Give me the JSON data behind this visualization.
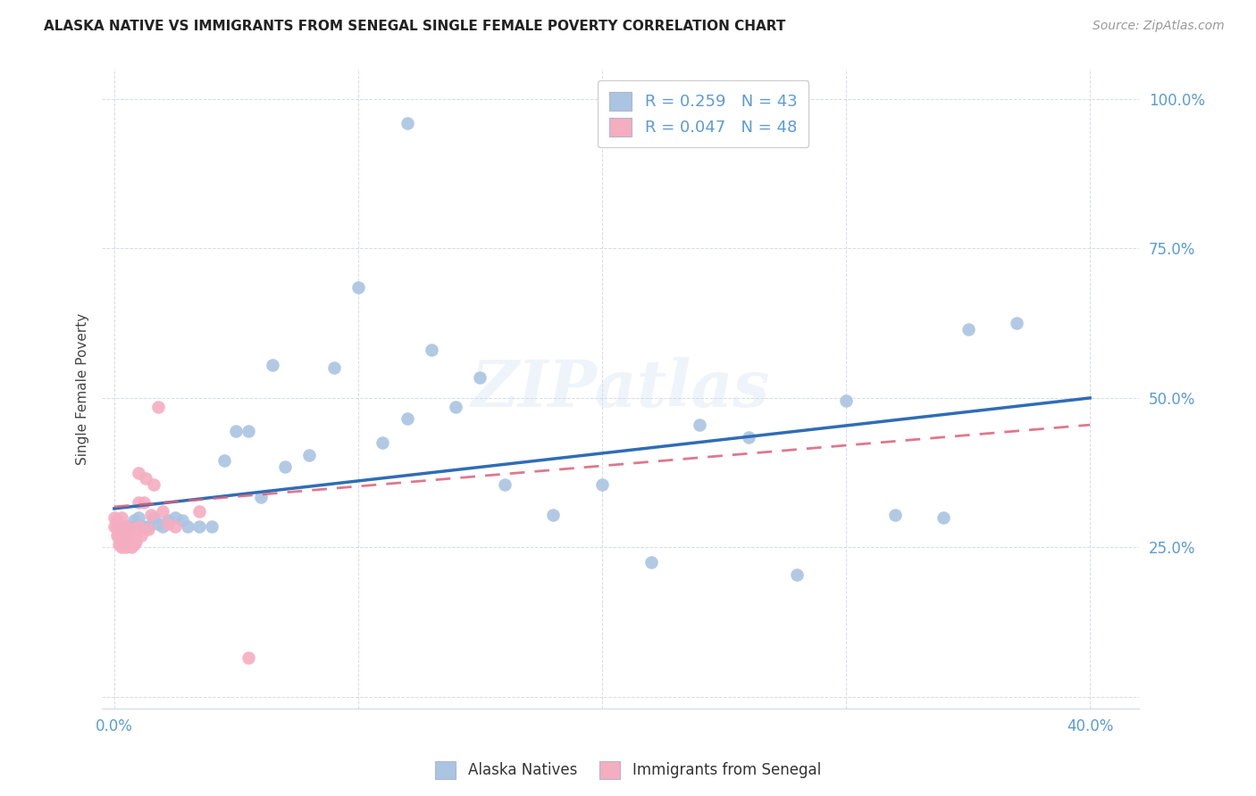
{
  "title": "ALASKA NATIVE VS IMMIGRANTS FROM SENEGAL SINGLE FEMALE POVERTY CORRELATION CHART",
  "source": "Source: ZipAtlas.com",
  "ylabel_label": "Single Female Poverty",
  "xlim": [
    -0.005,
    0.42
  ],
  "ylim": [
    -0.02,
    1.05
  ],
  "blue_color": "#aac4e2",
  "pink_color": "#f5adc0",
  "blue_line_color": "#2f6db5",
  "pink_line_color": "#d9607a",
  "legend_label1": "Alaska Natives",
  "legend_label2": "Immigrants from Senegal",
  "watermark": "ZIPatlas",
  "alaska_x": [
    0.002,
    0.004,
    0.006,
    0.008,
    0.01,
    0.012,
    0.014,
    0.016,
    0.018,
    0.02,
    0.022,
    0.025,
    0.028,
    0.03,
    0.035,
    0.04,
    0.045,
    0.05,
    0.055,
    0.06,
    0.065,
    0.07,
    0.08,
    0.09,
    0.1,
    0.11,
    0.12,
    0.13,
    0.14,
    0.15,
    0.16,
    0.18,
    0.2,
    0.22,
    0.24,
    0.26,
    0.28,
    0.3,
    0.32,
    0.35,
    0.37,
    0.34,
    0.12
  ],
  "alaska_y": [
    0.28,
    0.26,
    0.285,
    0.295,
    0.3,
    0.285,
    0.285,
    0.3,
    0.29,
    0.285,
    0.295,
    0.3,
    0.295,
    0.285,
    0.285,
    0.285,
    0.395,
    0.445,
    0.445,
    0.335,
    0.555,
    0.385,
    0.405,
    0.55,
    0.685,
    0.425,
    0.465,
    0.58,
    0.485,
    0.535,
    0.355,
    0.305,
    0.355,
    0.225,
    0.455,
    0.435,
    0.205,
    0.495,
    0.305,
    0.615,
    0.625,
    0.3,
    0.96
  ],
  "senegal_x": [
    0.0,
    0.0,
    0.001,
    0.001,
    0.001,
    0.002,
    0.002,
    0.002,
    0.002,
    0.003,
    0.003,
    0.003,
    0.003,
    0.003,
    0.004,
    0.004,
    0.004,
    0.005,
    0.005,
    0.005,
    0.005,
    0.006,
    0.006,
    0.006,
    0.006,
    0.007,
    0.007,
    0.007,
    0.008,
    0.008,
    0.008,
    0.009,
    0.009,
    0.01,
    0.01,
    0.01,
    0.011,
    0.012,
    0.013,
    0.014,
    0.015,
    0.016,
    0.018,
    0.02,
    0.022,
    0.025,
    0.035,
    0.055
  ],
  "senegal_y": [
    0.3,
    0.285,
    0.285,
    0.27,
    0.295,
    0.275,
    0.265,
    0.255,
    0.27,
    0.265,
    0.275,
    0.285,
    0.3,
    0.25,
    0.26,
    0.27,
    0.28,
    0.25,
    0.26,
    0.27,
    0.285,
    0.255,
    0.265,
    0.275,
    0.28,
    0.25,
    0.265,
    0.27,
    0.255,
    0.265,
    0.28,
    0.26,
    0.27,
    0.325,
    0.375,
    0.285,
    0.27,
    0.325,
    0.365,
    0.28,
    0.305,
    0.355,
    0.485,
    0.31,
    0.29,
    0.285,
    0.31,
    0.065
  ],
  "x_ticks": [
    0.0,
    0.1,
    0.2,
    0.3,
    0.4
  ],
  "x_tick_labels": [
    "0.0%",
    "",
    "",
    "",
    "40.0%"
  ],
  "y_ticks": [
    0.0,
    0.25,
    0.5,
    0.75,
    1.0
  ],
  "y_tick_labels": [
    "",
    "25.0%",
    "50.0%",
    "75.0%",
    "100.0%"
  ]
}
